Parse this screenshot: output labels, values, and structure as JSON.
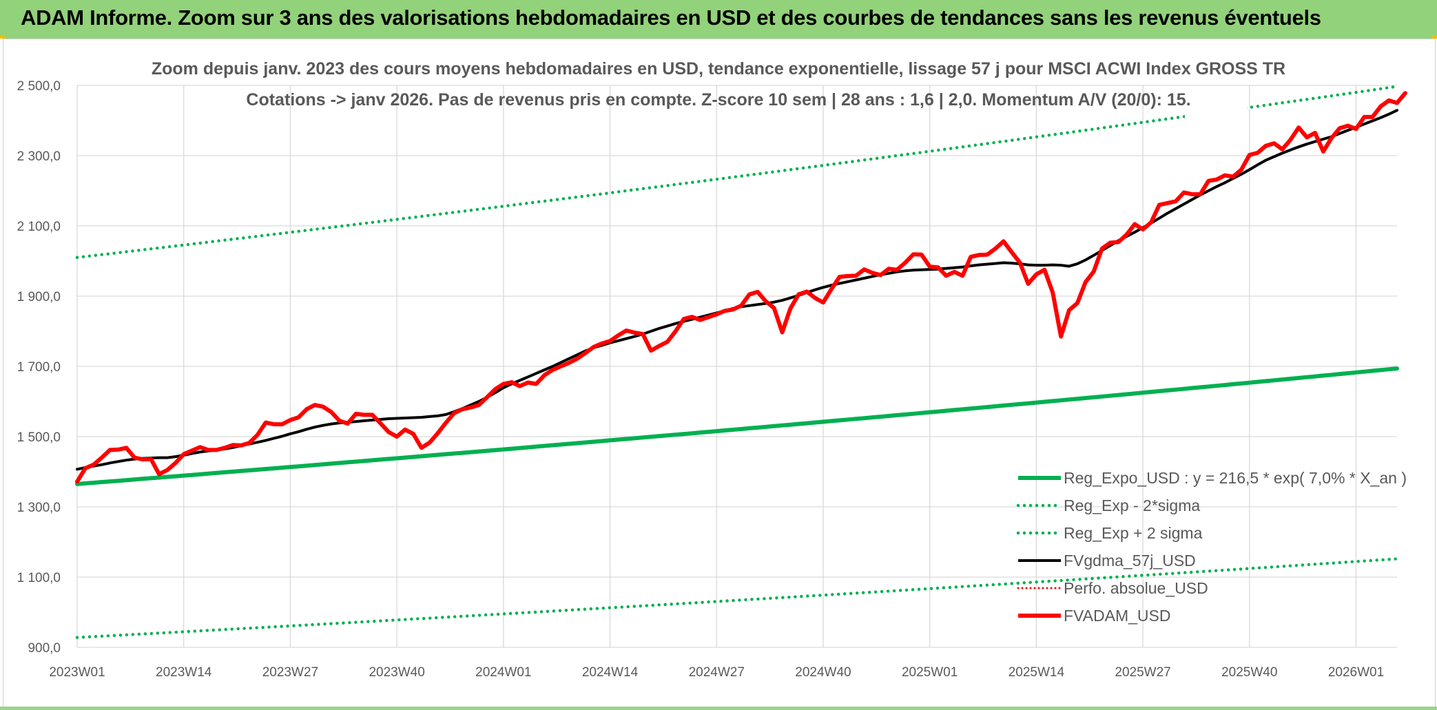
{
  "banner": {
    "title": "ADAM Informe. Zoom sur 3 ans des valorisations hebdomadaires en USD et des courbes de tendances sans les revenus éventuels"
  },
  "chart_data": {
    "type": "line",
    "title": "",
    "subtitle_lines": [
      "Zoom depuis janv. 2023 des cours moyens hebdomadaires en USD, tendance exponentielle, lissage 57 j pour MSCI ACWI Index GROSS TR",
      "Cotations -> janv 2026. Pas de revenus pris en compte. Z-score 10 sem | 28 ans : 1,6 | 2,0. Momentum A/V (20/0): 15."
    ],
    "xlabel": "",
    "ylabel": "",
    "ylim": [
      900,
      2500
    ],
    "yticks": [
      "900,0",
      "1 100,0",
      "1 300,0",
      "1 500,0",
      "1 700,0",
      "1 900,0",
      "2 100,0",
      "2 300,0",
      "2 500,0"
    ],
    "x_tick_labels": [
      "2023W01",
      "2023W14",
      "2023W27",
      "2023W40",
      "2024W01",
      "2024W14",
      "2024W27",
      "2024W40",
      "2025W01",
      "2025W14",
      "2025W27",
      "2025W40",
      "2026W01"
    ],
    "x_tick_index": [
      0,
      13,
      26,
      39,
      52,
      65,
      78,
      91,
      104,
      117,
      130,
      143,
      156
    ],
    "x_last_index": 161,
    "grid": true,
    "legend_position": "bottom-right",
    "series": [
      {
        "name": "Reg_Expo_USD : y = 216,5 * exp( 7,0% *  X_an )",
        "color": "#00b050",
        "style": "solid-thick",
        "start": 1365,
        "end": 1694
      },
      {
        "name": "Reg_Exp - 2*sigma",
        "color": "#00b050",
        "style": "dotted",
        "start": 928,
        "end": 1152
      },
      {
        "name": "Reg_Exp + 2 sigma",
        "color": "#00b050",
        "style": "dotted",
        "start": 2010,
        "end": 2497
      },
      {
        "name": "FVgdma_57j_USD",
        "color": "#000000",
        "style": "solid",
        "values": [
          1407,
          1412,
          1416,
          1420,
          1425,
          1429,
          1433,
          1436,
          1438,
          1439,
          1440,
          1440,
          1443,
          1447,
          1452,
          1456,
          1459,
          1462,
          1465,
          1469,
          1474,
          1479,
          1484,
          1489,
          1495,
          1501,
          1508,
          1514,
          1521,
          1527,
          1532,
          1536,
          1539,
          1541,
          1543,
          1545,
          1547,
          1549,
          1551,
          1552,
          1553,
          1554,
          1555,
          1557,
          1559,
          1563,
          1571,
          1580,
          1590,
          1600,
          1612,
          1625,
          1639,
          1650,
          1660,
          1670,
          1680,
          1690,
          1700,
          1711,
          1722,
          1733,
          1744,
          1753,
          1760,
          1767,
          1773,
          1779,
          1785,
          1792,
          1800,
          1808,
          1815,
          1822,
          1828,
          1834,
          1840,
          1846,
          1852,
          1858,
          1865,
          1870,
          1873,
          1876,
          1879,
          1883,
          1888,
          1895,
          1902,
          1910,
          1918,
          1925,
          1931,
          1936,
          1941,
          1946,
          1951,
          1956,
          1961,
          1965,
          1969,
          1972,
          1974,
          1975,
          1976,
          1977,
          1979,
          1981,
          1983,
          1986,
          1989,
          1991,
          1993,
          1995,
          1994,
          1992,
          1989,
          1988,
          1988,
          1989,
          1988,
          1985,
          1992,
          2003,
          2016,
          2030,
          2044,
          2058,
          2070,
          2082,
          2095,
          2108,
          2122,
          2136,
          2149,
          2162,
          2175,
          2188,
          2200,
          2212,
          2223,
          2235,
          2247,
          2260,
          2274,
          2287,
          2297,
          2307,
          2316,
          2325,
          2333,
          2340,
          2347,
          2354,
          2363,
          2372,
          2381,
          2390,
          2399,
          2408,
          2418,
          2429
        ]
      },
      {
        "name": "Perfo. absolue_USD",
        "color": "#ff0000",
        "style": "dotted-thin"
      },
      {
        "name": "FVADAM_USD",
        "color": "#ff0000",
        "style": "solid-thick",
        "values": [
          1372,
          1410,
          1420,
          1440,
          1462,
          1463,
          1468,
          1440,
          1435,
          1436,
          1393,
          1405,
          1425,
          1450,
          1460,
          1470,
          1462,
          1462,
          1468,
          1476,
          1475,
          1482,
          1505,
          1540,
          1535,
          1535,
          1547,
          1555,
          1578,
          1590,
          1585,
          1570,
          1545,
          1537,
          1565,
          1562,
          1562,
          1538,
          1513,
          1500,
          1520,
          1508,
          1468,
          1483,
          1510,
          1540,
          1567,
          1578,
          1583,
          1590,
          1612,
          1635,
          1650,
          1655,
          1644,
          1654,
          1650,
          1675,
          1690,
          1700,
          1710,
          1722,
          1738,
          1755,
          1765,
          1772,
          1788,
          1802,
          1796,
          1792,
          1745,
          1758,
          1770,
          1800,
          1835,
          1841,
          1832,
          1840,
          1848,
          1858,
          1862,
          1873,
          1905,
          1912,
          1885,
          1866,
          1797,
          1865,
          1905,
          1913,
          1895,
          1882,
          1920,
          1955,
          1957,
          1958,
          1976,
          1966,
          1960,
          1978,
          1975,
          1995,
          2019,
          2018,
          1984,
          1982,
          1958,
          1969,
          1958,
          2012,
          2017,
          2018,
          2035,
          2056,
          2025,
          1995,
          1935,
          1962,
          1975,
          1910,
          1785,
          1860,
          1880,
          1940,
          1970,
          2035,
          2052,
          2054,
          2075,
          2105,
          2090,
          2110,
          2160,
          2165,
          2170,
          2195,
          2190,
          2190,
          2228,
          2232,
          2244,
          2240,
          2260,
          2302,
          2308,
          2328,
          2335,
          2318,
          2345,
          2380,
          2352,
          2365,
          2312,
          2350,
          2378,
          2385,
          2376,
          2410,
          2410,
          2440,
          2457,
          2450,
          2478
        ]
      }
    ]
  }
}
